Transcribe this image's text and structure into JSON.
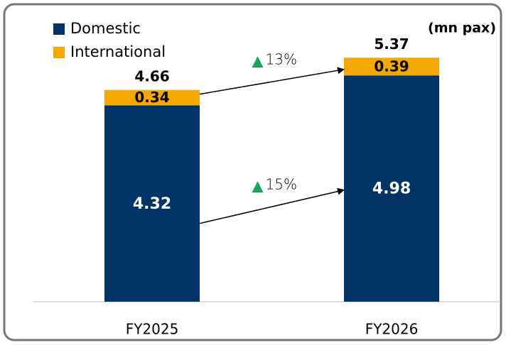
{
  "chart_data": {
    "type": "stacked_bar",
    "unit_label": "(mn pax)",
    "categories": [
      "FY2025",
      "FY2026"
    ],
    "series": [
      {
        "name": "Domestic",
        "color": "#003466",
        "values": [
          4.32,
          4.98
        ],
        "growth_label": "15%"
      },
      {
        "name": "International",
        "color": "#f5a800",
        "values": [
          0.34,
          0.39
        ],
        "growth_label": "13%"
      }
    ],
    "totals": [
      4.66,
      5.37
    ],
    "ylim": [
      0,
      6
    ],
    "growth_marker_color": "#1aa55a"
  }
}
